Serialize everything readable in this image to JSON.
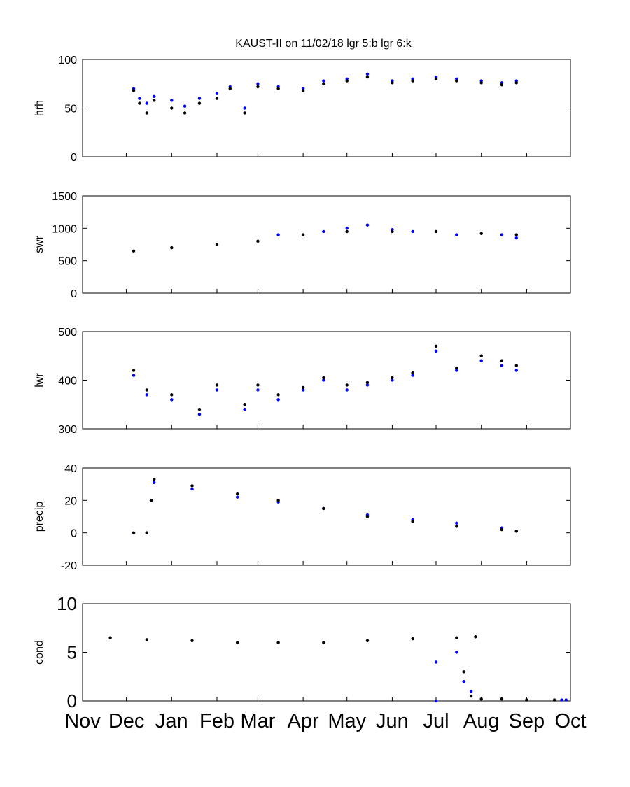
{
  "title": "KAUST-II on 11/02/18 lgr 5:b lgr 6:k",
  "colors": {
    "lgr5": "#0000ff",
    "lgr6": "#000000",
    "axes": "#000000",
    "background": "#ffffff"
  },
  "x_axis": {
    "type": "time",
    "range": [
      "2017-11-01",
      "2018-10-01"
    ],
    "months": [
      {
        "date": "2017-11-01",
        "label": "Nov"
      },
      {
        "date": "2017-12-01",
        "label": "Dec"
      },
      {
        "date": "2018-01-01",
        "label": "Jan"
      },
      {
        "date": "2018-02-01",
        "label": "Feb"
      },
      {
        "date": "2018-03-01",
        "label": "Mar"
      },
      {
        "date": "2018-04-01",
        "label": "Apr"
      },
      {
        "date": "2018-05-01",
        "label": "May"
      },
      {
        "date": "2018-06-01",
        "label": "Jun"
      },
      {
        "date": "2018-07-01",
        "label": "Jul"
      },
      {
        "date": "2018-08-01",
        "label": "Aug"
      },
      {
        "date": "2018-09-01",
        "label": "Sep"
      },
      {
        "date": "2018-10-01",
        "label": "Oct"
      }
    ]
  },
  "chart_data": [
    {
      "type": "scatter",
      "ylabel": "hrh",
      "ylim": [
        0,
        100
      ],
      "yticks": [
        {
          "v": 0,
          "label": "0"
        },
        {
          "v": 50,
          "label": "50"
        },
        {
          "v": 100,
          "label": "100"
        }
      ],
      "series": [
        {
          "color": "#0000ff",
          "points": [
            [
              "2017-12-06",
              70
            ],
            [
              "2017-12-10",
              60
            ],
            [
              "2017-12-15",
              55
            ],
            [
              "2017-12-20",
              62
            ],
            [
              "2018-01-01",
              58
            ],
            [
              "2018-01-10",
              52
            ],
            [
              "2018-01-20",
              60
            ],
            [
              "2018-02-01",
              65
            ],
            [
              "2018-02-10",
              72
            ],
            [
              "2018-02-20",
              50
            ],
            [
              "2018-03-01",
              75
            ],
            [
              "2018-03-15",
              72
            ],
            [
              "2018-04-01",
              70
            ],
            [
              "2018-04-15",
              78
            ],
            [
              "2018-05-01",
              80
            ],
            [
              "2018-05-15",
              85
            ],
            [
              "2018-06-01",
              78
            ],
            [
              "2018-06-15",
              80
            ],
            [
              "2018-07-01",
              82
            ],
            [
              "2018-07-15",
              80
            ],
            [
              "2018-08-01",
              78
            ],
            [
              "2018-08-15",
              76
            ],
            [
              "2018-08-25",
              78
            ]
          ]
        },
        {
          "color": "#000000",
          "points": [
            [
              "2017-12-06",
              68
            ],
            [
              "2017-12-10",
              55
            ],
            [
              "2017-12-15",
              45
            ],
            [
              "2017-12-20",
              58
            ],
            [
              "2018-01-01",
              50
            ],
            [
              "2018-01-10",
              45
            ],
            [
              "2018-01-20",
              55
            ],
            [
              "2018-02-01",
              60
            ],
            [
              "2018-02-10",
              70
            ],
            [
              "2018-02-20",
              45
            ],
            [
              "2018-03-01",
              72
            ],
            [
              "2018-03-15",
              70
            ],
            [
              "2018-04-01",
              68
            ],
            [
              "2018-04-15",
              75
            ],
            [
              "2018-05-01",
              78
            ],
            [
              "2018-05-15",
              82
            ],
            [
              "2018-06-01",
              76
            ],
            [
              "2018-06-15",
              78
            ],
            [
              "2018-07-01",
              80
            ],
            [
              "2018-07-15",
              78
            ],
            [
              "2018-08-01",
              76
            ],
            [
              "2018-08-15",
              74
            ],
            [
              "2018-08-25",
              76
            ]
          ]
        }
      ]
    },
    {
      "type": "scatter",
      "ylabel": "swr",
      "ylim": [
        0,
        1500
      ],
      "yticks": [
        {
          "v": 0,
          "label": "0"
        },
        {
          "v": 500,
          "label": "500"
        },
        {
          "v": 1000,
          "label": "1000"
        },
        {
          "v": 1500,
          "label": "1500"
        }
      ],
      "series": [
        {
          "color": "#0000ff",
          "points": [
            [
              "2018-03-15",
              900
            ],
            [
              "2018-04-15",
              950
            ],
            [
              "2018-05-01",
              1000
            ],
            [
              "2018-05-15",
              1050
            ],
            [
              "2018-06-01",
              980
            ],
            [
              "2018-06-15",
              950
            ],
            [
              "2018-07-15",
              900
            ],
            [
              "2018-08-15",
              900
            ],
            [
              "2018-08-25",
              850
            ]
          ]
        },
        {
          "color": "#000000",
          "points": [
            [
              "2017-12-06",
              650
            ],
            [
              "2018-01-01",
              700
            ],
            [
              "2018-02-01",
              750
            ],
            [
              "2018-03-01",
              800
            ],
            [
              "2018-04-01",
              900
            ],
            [
              "2018-05-01",
              950
            ],
            [
              "2018-06-01",
              950
            ],
            [
              "2018-07-01",
              950
            ],
            [
              "2018-08-01",
              920
            ],
            [
              "2018-08-25",
              900
            ]
          ]
        }
      ]
    },
    {
      "type": "scatter",
      "ylabel": "lwr",
      "ylim": [
        300,
        500
      ],
      "yticks": [
        {
          "v": 300,
          "label": "300"
        },
        {
          "v": 400,
          "label": "400"
        },
        {
          "v": 500,
          "label": "500"
        }
      ],
      "series": [
        {
          "color": "#0000ff",
          "points": [
            [
              "2017-12-06",
              410
            ],
            [
              "2017-12-15",
              370
            ],
            [
              "2018-01-01",
              360
            ],
            [
              "2018-01-20",
              330
            ],
            [
              "2018-02-01",
              380
            ],
            [
              "2018-02-20",
              340
            ],
            [
              "2018-03-01",
              380
            ],
            [
              "2018-03-15",
              360
            ],
            [
              "2018-04-01",
              380
            ],
            [
              "2018-04-15",
              400
            ],
            [
              "2018-05-01",
              380
            ],
            [
              "2018-05-15",
              390
            ],
            [
              "2018-06-01",
              400
            ],
            [
              "2018-06-15",
              410
            ],
            [
              "2018-07-01",
              460
            ],
            [
              "2018-07-15",
              420
            ],
            [
              "2018-08-01",
              440
            ],
            [
              "2018-08-15",
              430
            ],
            [
              "2018-08-25",
              420
            ]
          ]
        },
        {
          "color": "#000000",
          "points": [
            [
              "2017-12-06",
              420
            ],
            [
              "2017-12-15",
              380
            ],
            [
              "2018-01-01",
              370
            ],
            [
              "2018-01-20",
              340
            ],
            [
              "2018-02-01",
              390
            ],
            [
              "2018-02-20",
              350
            ],
            [
              "2018-03-01",
              390
            ],
            [
              "2018-03-15",
              370
            ],
            [
              "2018-04-01",
              385
            ],
            [
              "2018-04-15",
              405
            ],
            [
              "2018-05-01",
              390
            ],
            [
              "2018-05-15",
              395
            ],
            [
              "2018-06-01",
              405
            ],
            [
              "2018-06-15",
              415
            ],
            [
              "2018-07-01",
              470
            ],
            [
              "2018-07-15",
              425
            ],
            [
              "2018-08-01",
              450
            ],
            [
              "2018-08-15",
              440
            ],
            [
              "2018-08-25",
              430
            ]
          ]
        }
      ]
    },
    {
      "type": "scatter",
      "ylabel": "precip",
      "ylim": [
        -20,
        40
      ],
      "yticks": [
        {
          "v": -20,
          "label": "-20"
        },
        {
          "v": 0,
          "label": "0"
        },
        {
          "v": 20,
          "label": "20"
        },
        {
          "v": 40,
          "label": "40"
        }
      ],
      "series": [
        {
          "color": "#0000ff",
          "points": [
            [
              "2017-12-06",
              0
            ],
            [
              "2017-12-15",
              0
            ],
            [
              "2017-12-18",
              20
            ],
            [
              "2017-12-20",
              31
            ],
            [
              "2018-01-15",
              27
            ],
            [
              "2018-02-15",
              22
            ],
            [
              "2018-03-15",
              19
            ],
            [
              "2018-04-15",
              15
            ],
            [
              "2018-05-15",
              11
            ],
            [
              "2018-06-15",
              8
            ],
            [
              "2018-07-15",
              6
            ],
            [
              "2018-08-15",
              3
            ],
            [
              "2018-08-25",
              1
            ]
          ]
        },
        {
          "color": "#000000",
          "points": [
            [
              "2017-12-06",
              0
            ],
            [
              "2017-12-15",
              0
            ],
            [
              "2017-12-18",
              20
            ],
            [
              "2017-12-20",
              33
            ],
            [
              "2018-01-15",
              29
            ],
            [
              "2018-02-15",
              24
            ],
            [
              "2018-03-15",
              20
            ],
            [
              "2018-04-15",
              15
            ],
            [
              "2018-05-15",
              10
            ],
            [
              "2018-06-15",
              7
            ],
            [
              "2018-07-15",
              4
            ],
            [
              "2018-08-15",
              2
            ],
            [
              "2018-08-25",
              1
            ]
          ]
        }
      ]
    },
    {
      "type": "scatter",
      "ylabel": "cond",
      "ylim": [
        0,
        10
      ],
      "yticks": [
        {
          "v": 0,
          "label": "0"
        },
        {
          "v": 5,
          "label": "5"
        },
        {
          "v": 10,
          "label": "10"
        }
      ],
      "series": [
        {
          "color": "#0000ff",
          "points": [
            [
              "2018-07-01",
              4
            ],
            [
              "2018-07-01",
              0
            ],
            [
              "2018-07-15",
              5
            ],
            [
              "2018-07-20",
              2
            ],
            [
              "2018-07-25",
              1
            ],
            [
              "2018-09-25",
              0.1
            ],
            [
              "2018-09-28",
              0.1
            ]
          ]
        },
        {
          "color": "#000000",
          "points": [
            [
              "2017-11-20",
              6.5
            ],
            [
              "2017-12-15",
              6.3
            ],
            [
              "2018-01-15",
              6.2
            ],
            [
              "2018-02-15",
              6.0
            ],
            [
              "2018-03-15",
              6.0
            ],
            [
              "2018-04-15",
              6.0
            ],
            [
              "2018-05-15",
              6.2
            ],
            [
              "2018-06-15",
              6.4
            ],
            [
              "2018-07-15",
              6.5
            ],
            [
              "2018-07-28",
              6.6
            ],
            [
              "2018-07-20",
              3
            ],
            [
              "2018-07-25",
              0.5
            ],
            [
              "2018-08-01",
              0.2
            ],
            [
              "2018-08-15",
              0.2
            ],
            [
              "2018-09-01",
              0.1
            ],
            [
              "2018-09-20",
              0.1
            ]
          ]
        }
      ]
    }
  ]
}
